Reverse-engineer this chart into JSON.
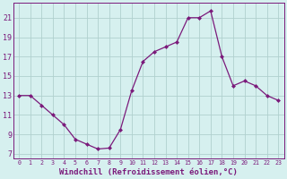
{
  "x": [
    0,
    1,
    2,
    3,
    4,
    5,
    6,
    7,
    8,
    9,
    10,
    11,
    12,
    13,
    14,
    15,
    16,
    17,
    18,
    19,
    20,
    21,
    22,
    23
  ],
  "windchill": [
    13,
    13,
    12,
    11,
    10,
    8.5,
    8,
    7.5,
    7.6,
    9.5,
    13.5,
    16.5,
    17.5,
    18,
    18.5,
    21,
    21,
    21.7,
    17,
    14,
    14.5,
    14,
    13,
    12.5
  ],
  "line_color": "#7b1a7b",
  "marker_color": "#7b1a7b",
  "bg_color": "#d6f0ef",
  "grid_color": "#b0d0ce",
  "xlabel": "Windchill (Refroidissement éolien,°C)",
  "xlim": [
    -0.5,
    23.5
  ],
  "ylim": [
    6.5,
    22.5
  ],
  "yticks": [
    7,
    9,
    11,
    13,
    15,
    17,
    19,
    21
  ],
  "xticks": [
    0,
    1,
    2,
    3,
    4,
    5,
    6,
    7,
    8,
    9,
    10,
    11,
    12,
    13,
    14,
    15,
    16,
    17,
    18,
    19,
    20,
    21,
    22,
    23
  ],
  "font_color": "#7b1a7b",
  "xlabel_fontsize": 6.5,
  "xlabel_fontweight": "bold",
  "ytick_fontsize": 6.0,
  "xtick_fontsize": 4.8
}
